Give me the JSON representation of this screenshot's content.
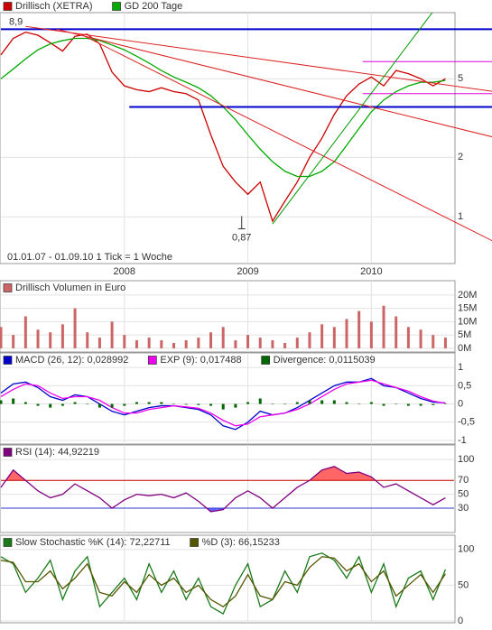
{
  "chart_data": [
    {
      "type": "line",
      "ylog": true,
      "xlim": [
        2007,
        2010.67
      ],
      "xticks": [
        2008,
        2009,
        2010
      ],
      "ylim": [
        0.58,
        10.8
      ],
      "yticks": [
        1,
        2,
        5
      ],
      "grid": true,
      "note": "01.01.07 - 01.09.10   1 Tick = 1 Woche",
      "x": [
        2007.0,
        2007.1,
        2007.2,
        2007.3,
        2007.4,
        2007.5,
        2007.6,
        2007.7,
        2007.8,
        2007.9,
        2008.0,
        2008.1,
        2008.2,
        2008.3,
        2008.4,
        2008.5,
        2008.6,
        2008.7,
        2008.8,
        2008.9,
        2009.0,
        2009.1,
        2009.2,
        2009.3,
        2009.4,
        2009.5,
        2009.6,
        2009.7,
        2009.8,
        2009.9,
        2010.0,
        2010.1,
        2010.2,
        2010.3,
        2010.4,
        2010.5,
        2010.6
      ],
      "series": [
        {
          "name": "Drillisch (XETRA)",
          "color": "#cc0000",
          "values": [
            6.6,
            8.0,
            8.6,
            8.3,
            7.6,
            6.9,
            8.2,
            8.4,
            7.5,
            5.4,
            4.6,
            4.4,
            4.3,
            4.5,
            4.3,
            4.2,
            3.9,
            2.6,
            1.8,
            1.5,
            1.3,
            1.5,
            0.95,
            1.2,
            1.5,
            2.0,
            2.5,
            3.3,
            4.1,
            4.7,
            5.1,
            4.6,
            5.5,
            5.3,
            5.0,
            4.6,
            5.0
          ]
        },
        {
          "name": "GD 200 Tage",
          "color": "#00aa00",
          "values": [
            5.0,
            5.6,
            6.3,
            7.0,
            7.5,
            7.8,
            8.0,
            8.0,
            7.8,
            7.4,
            7.0,
            6.5,
            6.0,
            5.5,
            5.1,
            4.8,
            4.5,
            4.1,
            3.6,
            3.1,
            2.6,
            2.2,
            1.9,
            1.7,
            1.6,
            1.6,
            1.7,
            1.9,
            2.3,
            2.8,
            3.4,
            3.9,
            4.3,
            4.6,
            4.8,
            4.8,
            4.9
          ]
        }
      ],
      "low": {
        "x": 2008.95,
        "value": 0.87,
        "label": "0,87"
      },
      "hlines": [
        {
          "value": 8.9,
          "label": "8,9",
          "from": 2007.0,
          "color": "#0000cc"
        },
        {
          "value": 3.6,
          "from": 2008.04,
          "color": "#0000cc"
        },
        {
          "value": 6.1,
          "from": 2009.93,
          "color": "#dd00dd"
        },
        {
          "value": 4.2,
          "from": 2009.93,
          "color": "#dd00dd"
        }
      ],
      "trendlines": [
        {
          "x": [
            2007.45,
            2011.0
          ],
          "values": [
            8.9,
            2.52
          ],
          "color": "#dd2222"
        },
        {
          "x": [
            2007.68,
            2011.0
          ],
          "values": [
            8.2,
            0.745
          ],
          "color": "#dd2222"
        },
        {
          "x": [
            2007.2,
            2011.0
          ],
          "values": [
            9.2,
            4.3
          ],
          "color": "#dd2222"
        },
        {
          "x": [
            2009.2,
            2010.57
          ],
          "values": [
            0.92,
            12.5
          ],
          "color": "#009900"
        }
      ]
    },
    {
      "type": "bar",
      "xlim": [
        2007,
        2010.67
      ],
      "ylim": [
        -1.4,
        25.4
      ],
      "yticks": [
        {
          "value": 0,
          "label": "0M"
        },
        {
          "value": 5,
          "label": "5M"
        },
        {
          "value": 10,
          "label": "10M"
        },
        {
          "value": 15,
          "label": "15M"
        },
        {
          "value": 20,
          "label": "20M"
        }
      ],
      "grid": true,
      "x": [
        2007.0,
        2007.1,
        2007.2,
        2007.3,
        2007.4,
        2007.5,
        2007.6,
        2007.7,
        2007.8,
        2007.9,
        2008.0,
        2008.1,
        2008.2,
        2008.3,
        2008.4,
        2008.5,
        2008.6,
        2008.7,
        2008.8,
        2008.9,
        2009.0,
        2009.1,
        2009.2,
        2009.3,
        2009.4,
        2009.5,
        2009.6,
        2009.7,
        2009.8,
        2009.9,
        2010.0,
        2010.1,
        2010.2,
        2010.3,
        2010.4,
        2010.5,
        2010.6
      ],
      "series": [
        {
          "name": "Drillisch Volumen in Euro",
          "color": "#cc6666",
          "type": "bar",
          "values": [
            8,
            5,
            12,
            7,
            6,
            9,
            15,
            6,
            4,
            10,
            5,
            3,
            4,
            3,
            2,
            3,
            4,
            6,
            8,
            3,
            5,
            4,
            3,
            2,
            4,
            6,
            9,
            8,
            11,
            14,
            10,
            16,
            12,
            8,
            7,
            5,
            4
          ]
        }
      ]
    },
    {
      "type": "line",
      "xlim": [
        2007,
        2010.67
      ],
      "ylim": [
        -1.1,
        1.4
      ],
      "yticks": [
        -1,
        {
          "value": -0.5,
          "label": "-0,5"
        },
        0,
        {
          "value": 0.5,
          "label": "0,5"
        },
        1
      ],
      "grid": true,
      "x": [
        2007.0,
        2007.1,
        2007.2,
        2007.3,
        2007.4,
        2007.5,
        2007.6,
        2007.7,
        2007.8,
        2007.9,
        2008.0,
        2008.1,
        2008.2,
        2008.3,
        2008.4,
        2008.5,
        2008.6,
        2008.7,
        2008.8,
        2008.9,
        2009.0,
        2009.1,
        2009.2,
        2009.3,
        2009.4,
        2009.5,
        2009.6,
        2009.7,
        2009.8,
        2009.9,
        2010.0,
        2010.1,
        2010.2,
        2010.3,
        2010.4,
        2010.5,
        2010.6
      ],
      "series": [
        {
          "name": "MACD (26, 12): 0,028992",
          "color": "#0000cc",
          "values": [
            0.3,
            0.55,
            0.6,
            0.45,
            0.2,
            0.1,
            0.25,
            0.2,
            0.0,
            -0.2,
            -0.3,
            -0.2,
            -0.1,
            -0.05,
            -0.05,
            -0.1,
            -0.15,
            -0.3,
            -0.6,
            -0.7,
            -0.5,
            -0.2,
            -0.3,
            -0.25,
            -0.1,
            0.1,
            0.3,
            0.5,
            0.6,
            0.6,
            0.7,
            0.5,
            0.45,
            0.3,
            0.15,
            0.05,
            0.03
          ]
        },
        {
          "name": "EXP (9): 0,017488",
          "color": "#ee00ee",
          "values": [
            0.2,
            0.4,
            0.55,
            0.5,
            0.3,
            0.15,
            0.2,
            0.2,
            0.1,
            -0.1,
            -0.25,
            -0.25,
            -0.15,
            -0.1,
            -0.05,
            -0.08,
            -0.12,
            -0.25,
            -0.45,
            -0.6,
            -0.55,
            -0.35,
            -0.3,
            -0.25,
            -0.15,
            0.0,
            0.2,
            0.4,
            0.55,
            0.6,
            0.65,
            0.55,
            0.45,
            0.35,
            0.2,
            0.08,
            0.02
          ]
        },
        {
          "name": "Divergence: 0,0115039",
          "color": "#006600",
          "type": "bar",
          "values": [
            0.1,
            0.15,
            0.05,
            -0.05,
            -0.1,
            -0.05,
            0.05,
            0,
            -0.1,
            -0.1,
            -0.05,
            0.05,
            0.05,
            0.05,
            0,
            -0.02,
            -0.03,
            -0.05,
            -0.15,
            -0.1,
            0.05,
            0.15,
            0,
            0,
            0.05,
            0.1,
            0.1,
            0.1,
            0.05,
            0,
            0.05,
            -0.05,
            0,
            -0.05,
            -0.05,
            -0.03,
            0.01
          ]
        }
      ]
    },
    {
      "type": "line",
      "xlim": [
        2007,
        2010.67
      ],
      "ylim": [
        -5,
        121
      ],
      "yticks": [
        30,
        50,
        70,
        100
      ],
      "grid": true,
      "x": [
        2007.0,
        2007.1,
        2007.2,
        2007.3,
        2007.4,
        2007.5,
        2007.6,
        2007.7,
        2007.8,
        2007.9,
        2008.0,
        2008.1,
        2008.2,
        2008.3,
        2008.4,
        2008.5,
        2008.6,
        2008.7,
        2008.8,
        2008.9,
        2009.0,
        2009.1,
        2009.2,
        2009.3,
        2009.4,
        2009.5,
        2009.6,
        2009.7,
        2009.8,
        2009.9,
        2010.0,
        2010.1,
        2010.2,
        2010.3,
        2010.4,
        2010.5,
        2010.6
      ],
      "series": [
        {
          "name": "RSI (14): 44,92219",
          "color": "#800080",
          "values": [
            60,
            85,
            70,
            55,
            45,
            50,
            65,
            55,
            45,
            30,
            42,
            50,
            48,
            50,
            45,
            52,
            40,
            25,
            28,
            45,
            55,
            45,
            30,
            45,
            60,
            70,
            85,
            90,
            80,
            82,
            75,
            60,
            65,
            55,
            45,
            35,
            45
          ]
        }
      ],
      "levels": [
        {
          "value": 70,
          "color": "#cc0000",
          "fill": "#ff6666",
          "side": "above"
        },
        {
          "value": 30,
          "color": "#3333cc",
          "fill": "#6666ff",
          "side": "below"
        }
      ]
    },
    {
      "type": "line",
      "xlim": [
        2007,
        2010.67
      ],
      "ylim": [
        -2.5,
        120
      ],
      "yticks": [
        0,
        50,
        100
      ],
      "grid": true,
      "x": [
        2007.0,
        2007.1,
        2007.2,
        2007.3,
        2007.4,
        2007.5,
        2007.6,
        2007.7,
        2007.8,
        2007.9,
        2008.0,
        2008.1,
        2008.2,
        2008.3,
        2008.4,
        2008.5,
        2008.6,
        2008.7,
        2008.8,
        2008.9,
        2009.0,
        2009.1,
        2009.2,
        2009.3,
        2009.4,
        2009.5,
        2009.6,
        2009.7,
        2009.8,
        2009.9,
        2010.0,
        2010.1,
        2010.2,
        2010.3,
        2010.4,
        2010.5,
        2010.6
      ],
      "series": [
        {
          "name": "Slow Stochastic %K (14): 72,22711",
          "color": "#1a7a1a",
          "values": [
            90,
            80,
            40,
            60,
            85,
            30,
            70,
            90,
            20,
            40,
            60,
            30,
            80,
            40,
            70,
            30,
            60,
            20,
            10,
            50,
            80,
            20,
            30,
            70,
            40,
            90,
            95,
            85,
            60,
            90,
            40,
            80,
            20,
            60,
            70,
            30,
            72
          ]
        },
        {
          "name": "%D (3): 66,15233",
          "color": "#555500",
          "values": [
            85,
            82,
            55,
            55,
            70,
            45,
            60,
            80,
            40,
            35,
            55,
            40,
            65,
            50,
            60,
            40,
            50,
            30,
            20,
            35,
            65,
            35,
            30,
            55,
            50,
            75,
            90,
            88,
            70,
            80,
            55,
            70,
            35,
            50,
            65,
            40,
            66
          ]
        }
      ]
    }
  ]
}
